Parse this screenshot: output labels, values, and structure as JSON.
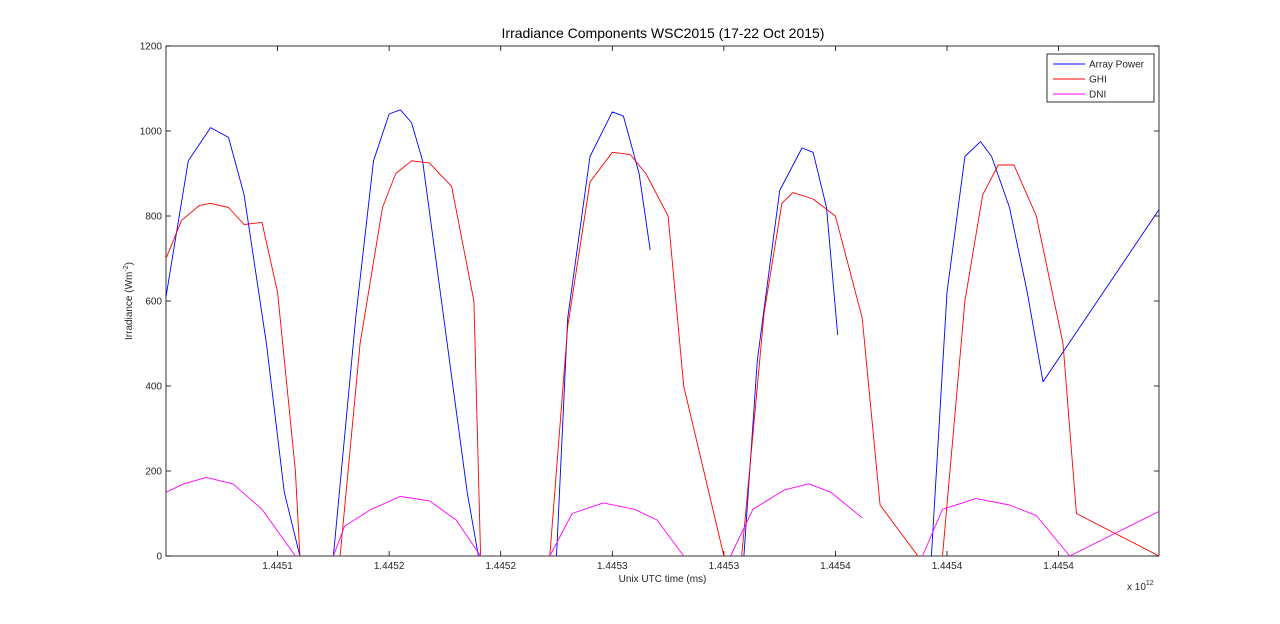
{
  "chart_data": {
    "type": "line",
    "title": "Irradiance Components WSC2015 (17-22 Oct 2015)",
    "xlabel": "Unix UTC time (ms)",
    "ylabel_base": "Irradiance (Wm",
    "ylabel_sup": "-2",
    "ylabel_close": ")",
    "x_multiplier_base": "x 10",
    "x_multiplier_exp": "12",
    "xlim": [
      1445050000,
      1445495000
    ],
    "ylim": [
      0,
      1200
    ],
    "yticks": [
      0,
      200,
      400,
      600,
      800,
      1000,
      1200
    ],
    "xticks": [
      {
        "value": 1445100000,
        "label": "1.4451"
      },
      {
        "value": 1445150000,
        "label": "1.4452"
      },
      {
        "value": 1445200000,
        "label": "1.4452"
      },
      {
        "value": 1445250000,
        "label": "1.4453"
      },
      {
        "value": 1445300000,
        "label": "1.4453"
      },
      {
        "value": 1445350000,
        "label": "1.4454"
      },
      {
        "value": 1445400000,
        "label": "1.4454"
      },
      {
        "value": 1445450000,
        "label": "1.4454"
      }
    ],
    "grid": false,
    "legend_position": "top-right",
    "series": [
      {
        "name": "Array Power",
        "color": "#0000ff",
        "x": [
          1445050000,
          1445060000,
          1445070000,
          1445078000,
          1445085000,
          1445095000,
          1445103000,
          1445110000,
          1445115000,
          1445125000,
          1445135000,
          1445143000,
          1445150000,
          1445155000,
          1445160000,
          1445165000,
          1445175000,
          1445185000,
          1445190000,
          1445220000,
          1445225000,
          1445230000,
          1445240000,
          1445250000,
          1445255000,
          1445262000,
          1445267000,
          1445303000,
          1445309000,
          1445315000,
          1445325000,
          1445335000,
          1445340000,
          1445346000,
          1445351000,
          1445387000,
          1445393000,
          1445400000,
          1445408000,
          1445415000,
          1445420000,
          1445428000,
          1445436000,
          1445443000,
          1445495000
        ],
        "values": [
          610,
          930,
          1008,
          985,
          850,
          500,
          150,
          0,
          null,
          0,
          560,
          930,
          1040,
          1050,
          1020,
          930,
          540,
          150,
          0,
          null,
          0,
          560,
          940,
          1045,
          1035,
          900,
          720,
          null,
          0,
          460,
          860,
          960,
          950,
          820,
          520,
          null,
          0,
          620,
          940,
          975,
          940,
          820,
          620,
          410,
          815
        ]
      },
      {
        "name": "GHI",
        "color": "#ff0000",
        "x": [
          1445050000,
          1445057000,
          1445065000,
          1445070000,
          1445078000,
          1445085000,
          1445093000,
          1445100000,
          1445108000,
          1445110000,
          1445125000,
          1445128000,
          1445137000,
          1445147000,
          1445153000,
          1445160000,
          1445168000,
          1445178000,
          1445188000,
          1445191000,
          1445220000,
          1445222000,
          1445230000,
          1445240000,
          1445250000,
          1445258000,
          1445265000,
          1445275000,
          1445282000,
          1445300000,
          1445303000,
          1445308000,
          1445318000,
          1445326000,
          1445331000,
          1445340000,
          1445350000,
          1445362000,
          1445370000,
          1445387000,
          1445389000,
          1445398000,
          1445408000,
          1445416000,
          1445423000,
          1445430000,
          1445440000,
          1445452000,
          1445458000,
          1445495000
        ],
        "values": [
          700,
          790,
          825,
          830,
          820,
          780,
          785,
          620,
          200,
          0,
          null,
          0,
          500,
          820,
          900,
          930,
          925,
          870,
          600,
          0,
          null,
          0,
          540,
          880,
          950,
          945,
          900,
          800,
          400,
          0,
          null,
          0,
          570,
          830,
          855,
          840,
          800,
          560,
          120,
          0,
          null,
          0,
          600,
          850,
          920,
          920,
          800,
          500,
          100,
          0
        ]
      },
      {
        "name": "DNI",
        "color": "#ff00ff",
        "x": [
          1445050000,
          1445058000,
          1445068000,
          1445080000,
          1445093000,
          1445108000,
          1445110000,
          1445125000,
          1445130000,
          1445142000,
          1445155000,
          1445168000,
          1445180000,
          1445191000,
          1445220000,
          1445222000,
          1445232000,
          1445246000,
          1445260000,
          1445270000,
          1445282000,
          1445300000,
          1445303000,
          1445313000,
          1445327000,
          1445338000,
          1445348000,
          1445362000,
          1445387000,
          1445389000,
          1445398000,
          1445413000,
          1445428000,
          1445440000,
          1445455000,
          1445495000
        ],
        "values": [
          150,
          170,
          185,
          170,
          110,
          0,
          null,
          0,
          70,
          110,
          140,
          130,
          85,
          0,
          null,
          0,
          100,
          125,
          110,
          85,
          0,
          null,
          0,
          110,
          155,
          170,
          150,
          90,
          null,
          0,
          110,
          135,
          120,
          95,
          0,
          105
        ]
      }
    ]
  }
}
